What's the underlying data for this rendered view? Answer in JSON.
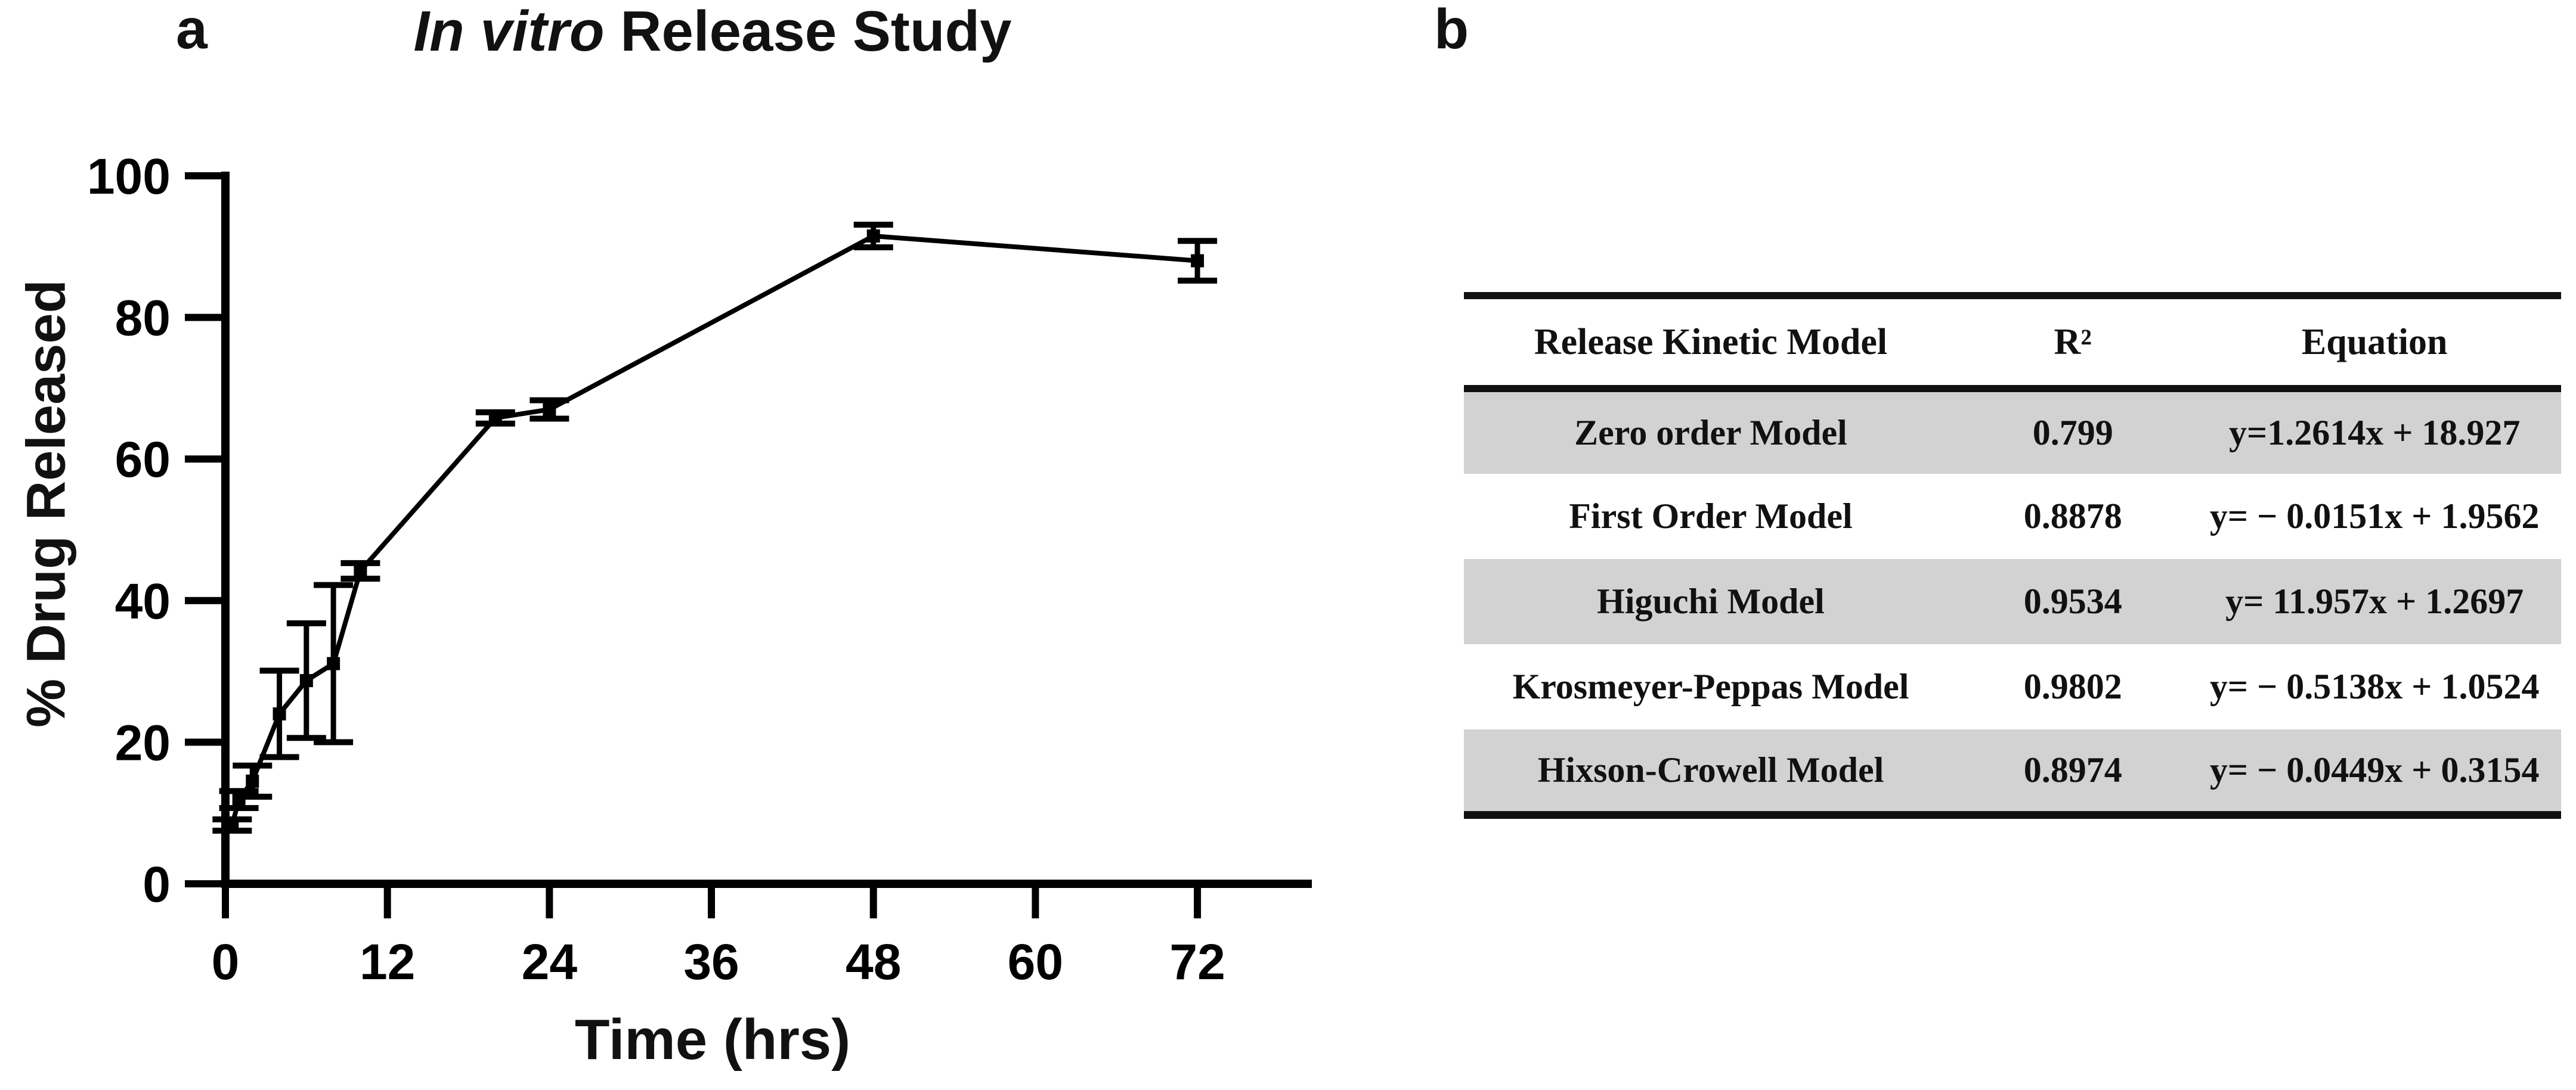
{
  "panels": {
    "a_label": "a",
    "b_label": "b"
  },
  "chart": {
    "title_italic": "In vitro",
    "title_rest": " Release Study",
    "xlabel": "Time (hrs)",
    "ylabel": "% Drug Released"
  },
  "chart_data": {
    "type": "line",
    "title": "In vitro Release Study",
    "xlabel": "Time (hrs)",
    "ylabel": "% Drug Released",
    "xlim": [
      0,
      78
    ],
    "ylim": [
      0,
      100
    ],
    "x_ticks": [
      0,
      12,
      24,
      36,
      48,
      60,
      72
    ],
    "y_ticks": [
      0,
      20,
      40,
      60,
      80,
      100
    ],
    "grid": false,
    "legend_position": "none",
    "marker": "square",
    "error_bars": true,
    "line_color": "#000000",
    "series": [
      {
        "name": "% Drug Released",
        "x": [
          0.5,
          1.0,
          2.0,
          4.0,
          6.0,
          8.0,
          10.0,
          20.0,
          24.0,
          48.0,
          72.0
        ],
        "y": [
          8.3,
          11.9,
          14.5,
          24.0,
          28.7,
          31.1,
          44.2,
          65.8,
          67.0,
          91.5,
          88.0
        ],
        "yerr": [
          0.8,
          1.2,
          2.2,
          6.1,
          8.1,
          11.1,
          1.1,
          0.8,
          1.3,
          1.6,
          2.8
        ]
      }
    ]
  },
  "table": {
    "headers": [
      "Release Kinetic Model",
      "R²",
      "Equation"
    ],
    "rows": [
      {
        "model": "Zero order Model",
        "r2": "0.799",
        "equation": "y=1.2614x + 18.927",
        "shaded": true
      },
      {
        "model": "First Order Model",
        "r2": "0.8878",
        "equation": "y= − 0.0151x + 1.9562",
        "shaded": false
      },
      {
        "model": "Higuchi Model",
        "r2": "0.9534",
        "equation": "y= 11.957x + 1.2697",
        "shaded": true
      },
      {
        "model": "Krosmeyer-Peppas Model",
        "r2": "0.9802",
        "equation": "y= − 0.5138x + 1.0524",
        "shaded": false
      },
      {
        "model": "Hixson-Crowell Model",
        "r2": "0.8974",
        "equation": "y= − 0.0449x + 0.3154",
        "shaded": true
      }
    ],
    "shade_color": "#d2d2d2"
  }
}
